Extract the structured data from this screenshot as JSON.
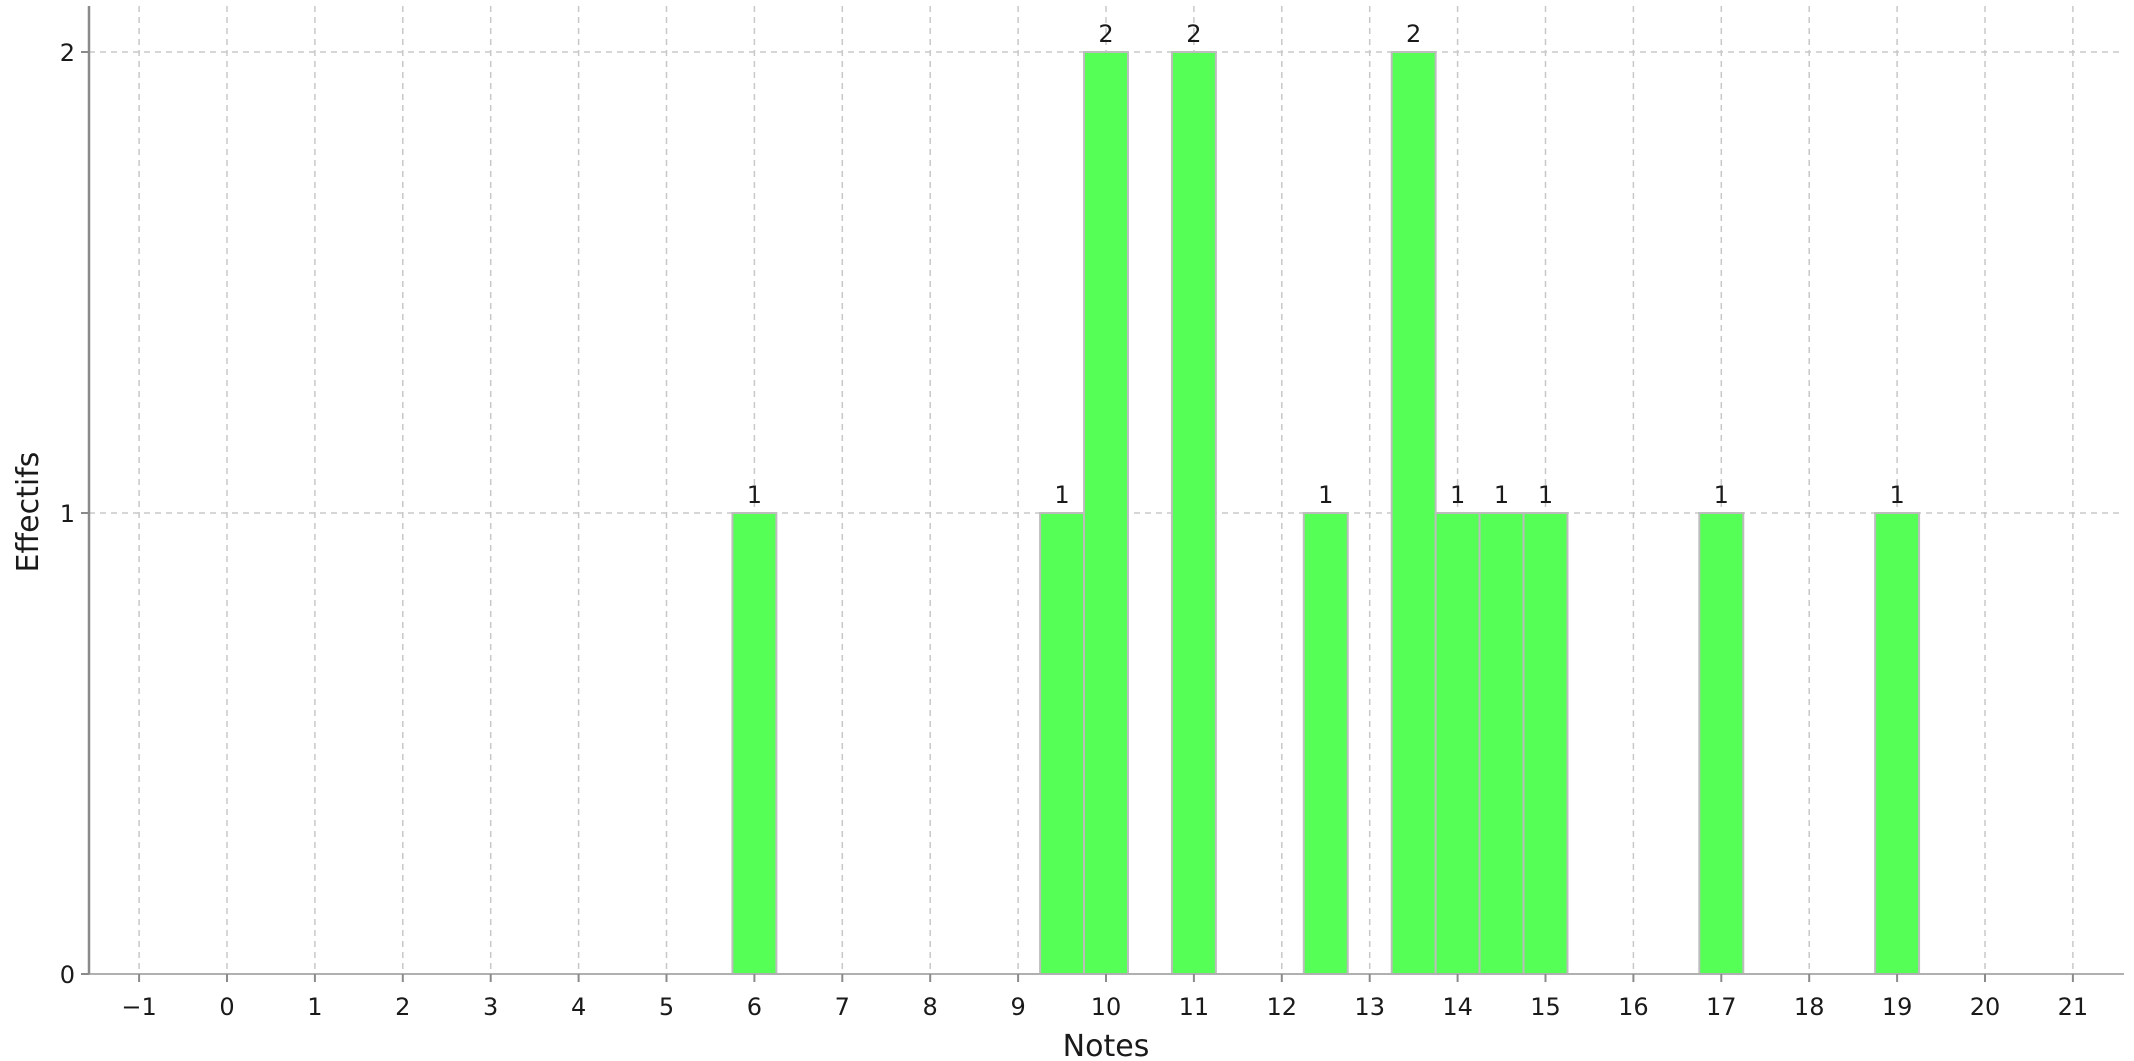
{
  "chart_data": {
    "type": "bar",
    "xlabel": "Notes",
    "ylabel": "Effectifs",
    "xlim": [
      -1.5,
      21.6
    ],
    "ylim": [
      0,
      2.1
    ],
    "x_ticks": [
      -1,
      0,
      1,
      2,
      3,
      4,
      5,
      6,
      7,
      8,
      9,
      10,
      11,
      12,
      13,
      14,
      15,
      16,
      17,
      18,
      19,
      20,
      21
    ],
    "x_tick_labels": [
      "−1",
      "0",
      "1",
      "2",
      "3",
      "4",
      "5",
      "6",
      "7",
      "8",
      "9",
      "10",
      "11",
      "12",
      "13",
      "14",
      "15",
      "16",
      "17",
      "18",
      "19",
      "20",
      "21"
    ],
    "y_ticks": [
      0,
      1,
      2
    ],
    "y_tick_labels": [
      "0",
      "1",
      "2"
    ],
    "bin_width": 0.5,
    "x": [
      6,
      9.5,
      10,
      11,
      12.5,
      13.5,
      14,
      14.5,
      15,
      17,
      19
    ],
    "values": [
      1,
      1,
      2,
      2,
      1,
      2,
      1,
      1,
      1,
      1,
      1
    ],
    "value_labels": [
      "1",
      "1",
      "2",
      "2",
      "1",
      "2",
      "1",
      "1",
      "1",
      "1",
      "1"
    ],
    "grid": true,
    "bar_color": "#55ff55",
    "bar_edge_color": "#bdbdbd"
  }
}
